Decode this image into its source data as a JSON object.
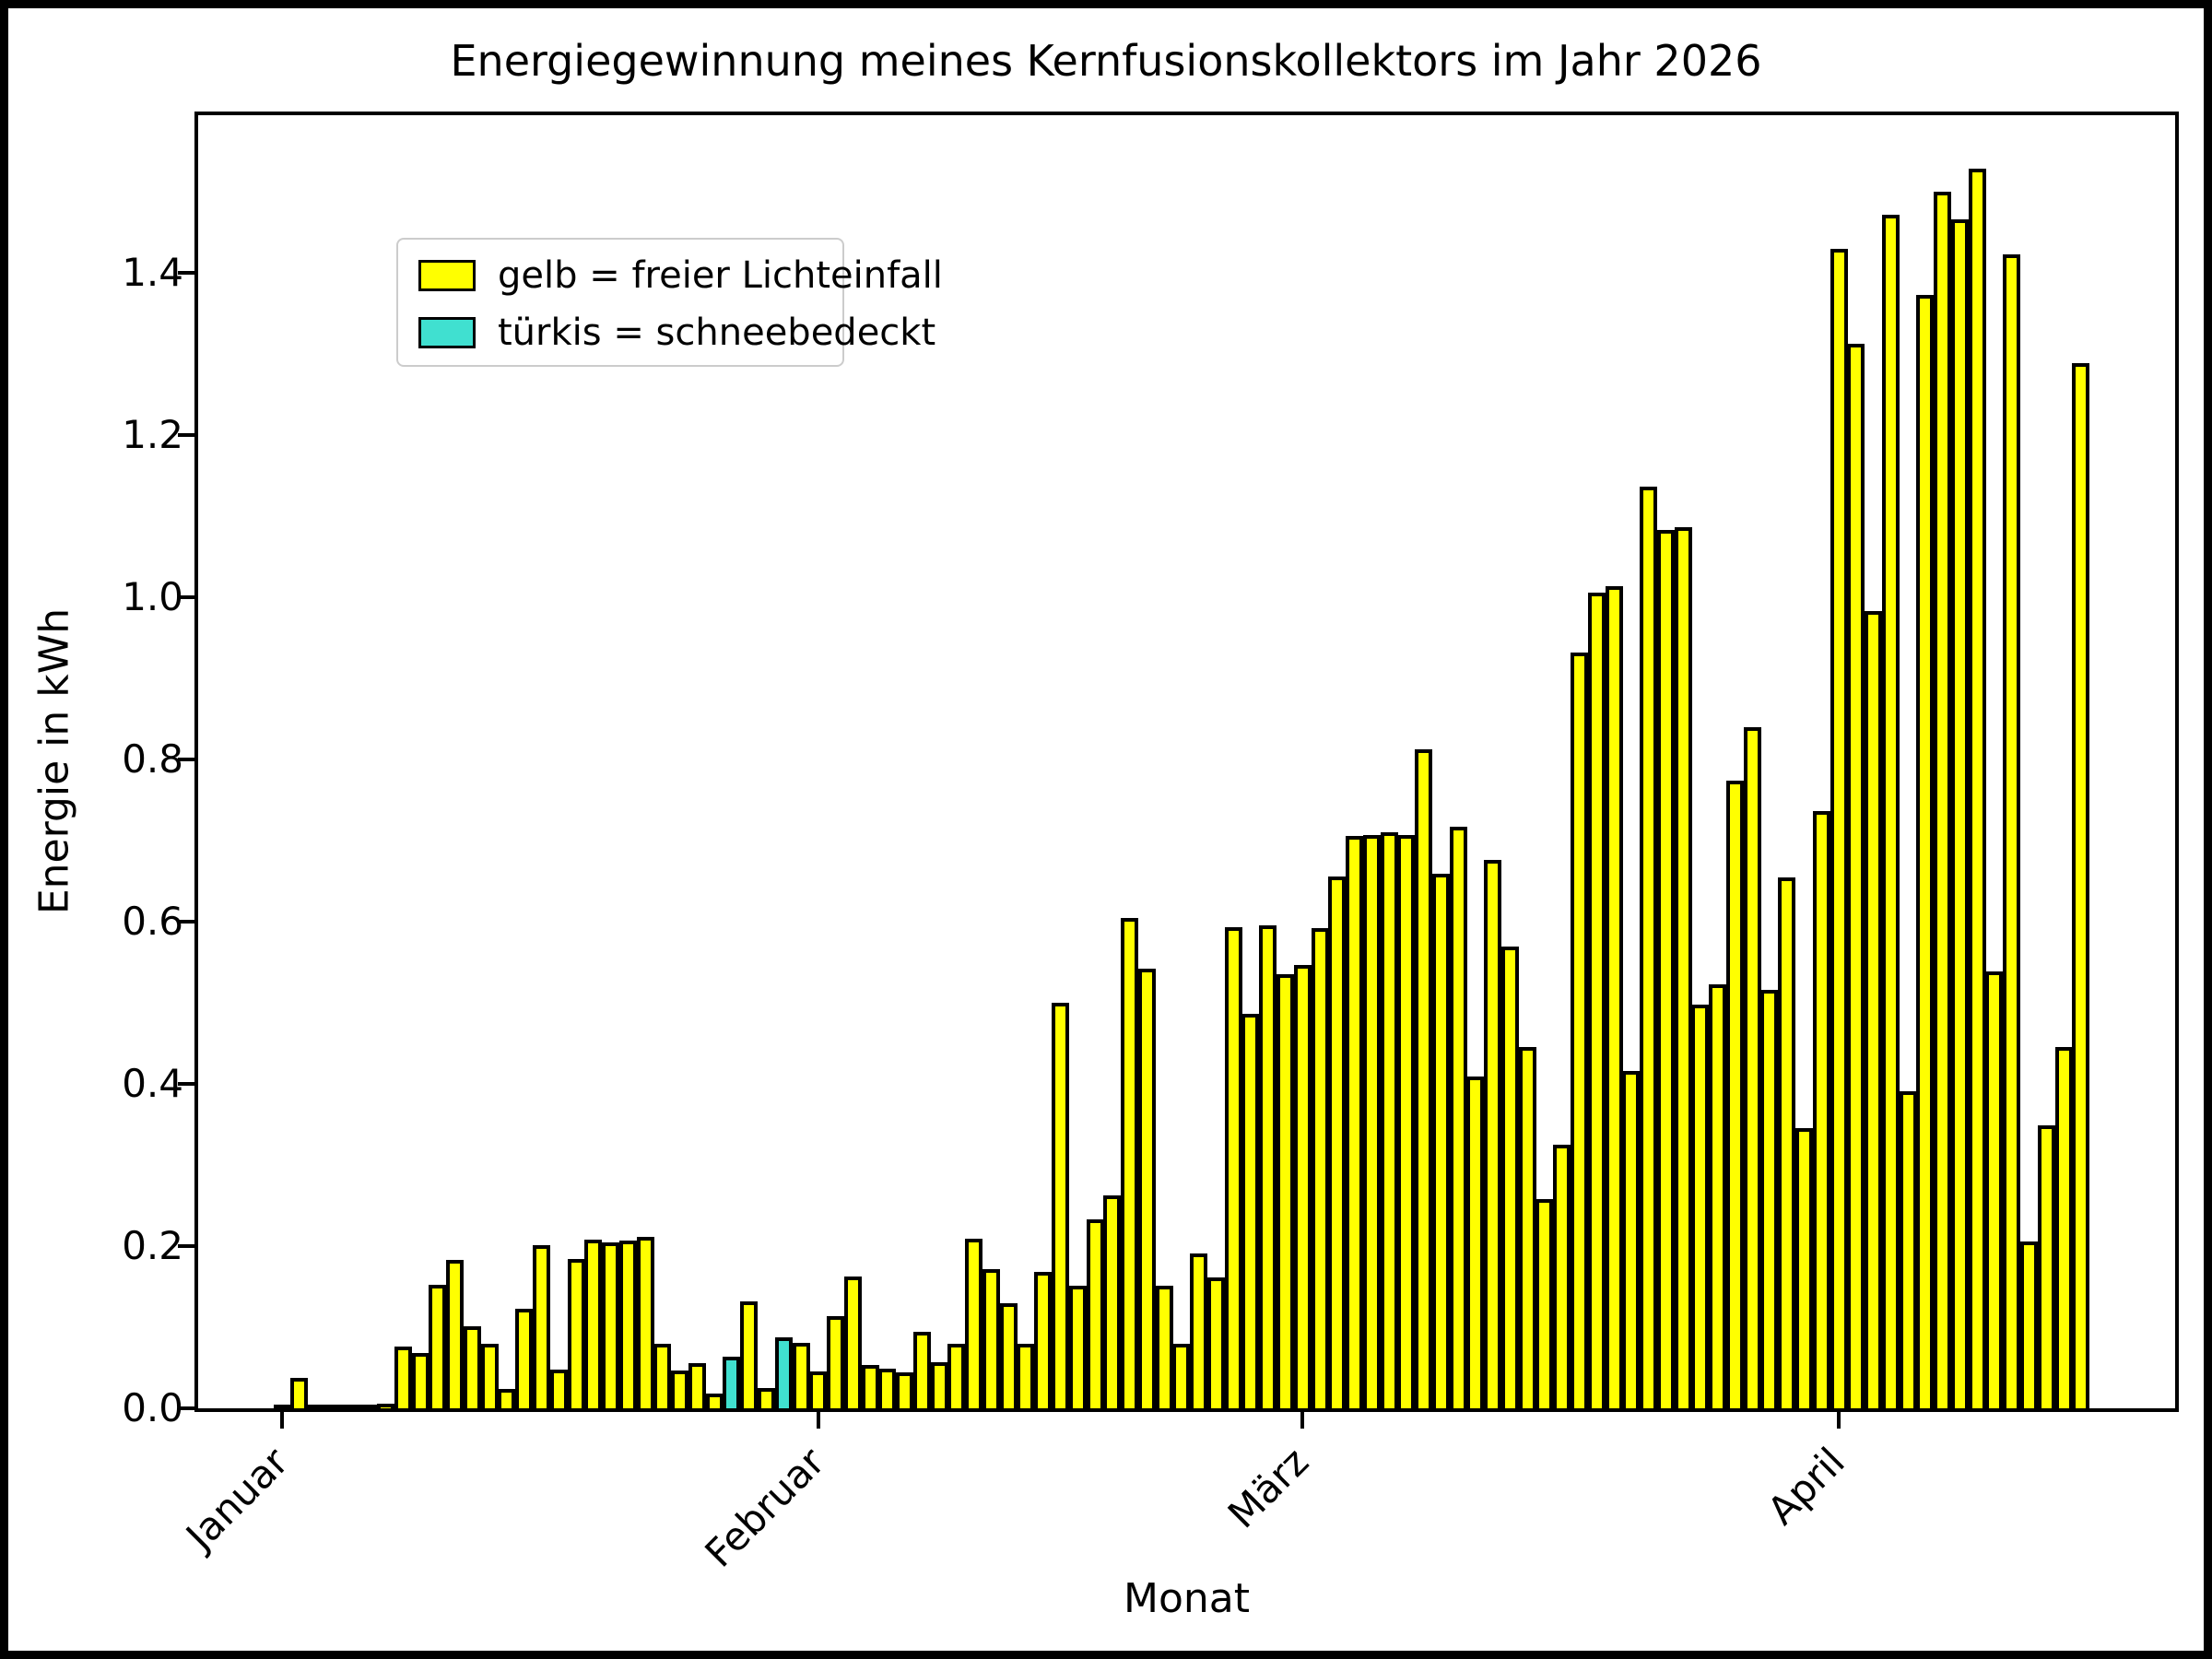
{
  "figure": {
    "title": "Energiegewinnung meines Kernfusionskollektors im Jahr 2026",
    "xlabel": "Monat",
    "ylabel": "Energie in kWh"
  },
  "legend": {
    "items": [
      {
        "label": "gelb = freier Lichteinfall",
        "color": "#ffff00"
      },
      {
        "label": "türkis = schneebedeckt",
        "color": "#40e0d0"
      }
    ]
  },
  "chart_data": {
    "type": "bar",
    "title": "Energiegewinnung meines Kernfusionskollektors im Jahr 2026",
    "xlabel": "Monat",
    "ylabel": "Energie in kWh",
    "ylim": [
      0,
      1.594
    ],
    "yticks": [
      "0.0",
      "0.2",
      "0.4",
      "0.6",
      "0.8",
      "1.0",
      "1.2",
      "1.4"
    ],
    "grid": false,
    "legend_position": "upper left",
    "bar_colors": {
      "free": "#ffff00",
      "snow": "#40e0d0"
    },
    "bar_edge_color": "#000000",
    "months": [
      {
        "label": "Januar",
        "values": [
          0.002,
          0.038,
          0.001,
          0.001,
          0.004,
          0.005,
          0.006,
          0.076,
          0.068,
          0.152,
          0.183,
          0.101,
          0.08,
          0.024,
          0.123,
          0.201,
          0.048,
          0.184,
          0.208,
          0.204,
          0.207,
          0.211,
          0.08,
          0.047,
          0.056,
          0.018,
          0.064,
          0.132,
          0.025,
          0.088,
          0.081
        ],
        "snow_days": [
          27,
          30
        ]
      },
      {
        "label": "Februar",
        "values": [
          0.045,
          0.114,
          0.163,
          0.053,
          0.049,
          0.044,
          0.094,
          0.057,
          0.079,
          0.209,
          0.172,
          0.13,
          0.08,
          0.168,
          0.5,
          0.151,
          0.233,
          0.262,
          0.604,
          0.542,
          0.151,
          0.079,
          0.191,
          0.161,
          0.593,
          0.486,
          0.595,
          0.535
        ],
        "snow_days": []
      },
      {
        "label": "März",
        "values": [
          0.547,
          0.592,
          0.655,
          0.705,
          0.707,
          0.71,
          0.707,
          0.812,
          0.659,
          0.717,
          0.409,
          0.676,
          0.569,
          0.445,
          0.258,
          0.325,
          0.932,
          1.005,
          1.013,
          0.416,
          1.136,
          1.083,
          1.086,
          0.498,
          0.523,
          0.774,
          0.84,
          0.516,
          0.654,
          0.345,
          0.736
        ],
        "snow_days": []
      },
      {
        "label": "April",
        "values": [
          1.429,
          1.312,
          0.983,
          1.471,
          0.391,
          1.373,
          1.5,
          1.466,
          1.528,
          0.538,
          1.423,
          0.206,
          0.349,
          0.445,
          1.288
        ],
        "snow_days": []
      }
    ]
  }
}
